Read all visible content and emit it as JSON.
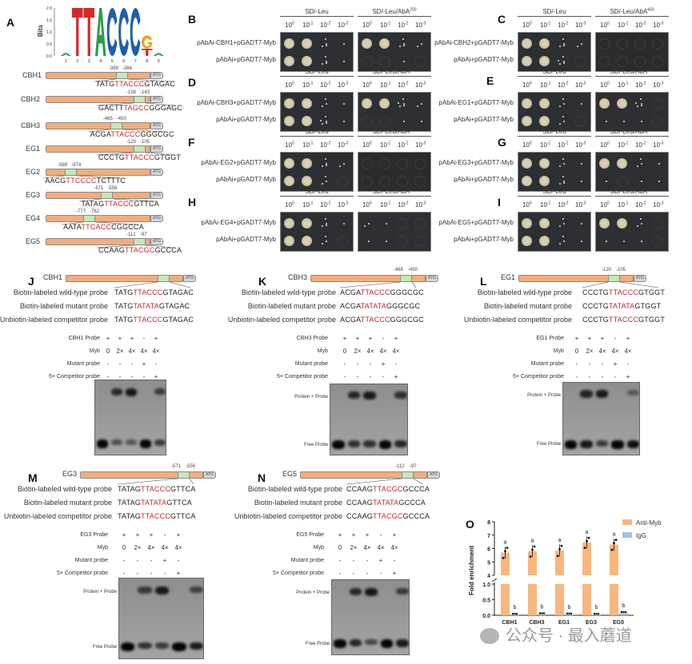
{
  "panel_labels": {
    "A": "A",
    "B": "B",
    "C": "C",
    "D": "D",
    "E": "E",
    "F": "F",
    "G": "G",
    "H": "H",
    "I": "I",
    "J": "J",
    "K": "K",
    "L": "L",
    "M": "M",
    "N": "N",
    "O": "O"
  },
  "logo": {
    "ylabel": "Bits",
    "yticks": [
      "0.0",
      "0.5",
      "1.0",
      "1.5",
      "2.0"
    ],
    "positions": [
      "1",
      "2",
      "3",
      "4",
      "5",
      "6",
      "7",
      "8",
      "9"
    ],
    "letters": [
      {
        "pos": 1,
        "letter": "A",
        "bits": 0.12,
        "color": "#2a9d4a"
      },
      {
        "pos": 2,
        "letter": "T",
        "bits": 2.0,
        "color": "#d62728"
      },
      {
        "pos": 3,
        "letter": "T",
        "bits": 2.0,
        "color": "#d62728"
      },
      {
        "pos": 4,
        "letter": "A",
        "bits": 2.0,
        "color": "#2a9d4a"
      },
      {
        "pos": 5,
        "letter": "C",
        "bits": 2.0,
        "color": "#1f5fa8"
      },
      {
        "pos": 6,
        "letter": "C",
        "bits": 2.0,
        "color": "#1f5fa8"
      },
      {
        "pos": 7,
        "letter": "C",
        "bits": 2.0,
        "color": "#1f5fa8"
      },
      {
        "pos": 8,
        "letter": "T",
        "bits": 0.3,
        "color": "#d62728"
      },
      {
        "pos": 8,
        "letter": "G",
        "bits": 0.55,
        "color": "#e8a317"
      },
      {
        "pos": 9,
        "letter": "A",
        "bits": 0.12,
        "color": "#2a9d4a"
      }
    ]
  },
  "promoters": [
    {
      "gene": "CBH1",
      "start": "-399",
      "end": "-384",
      "pre": "TATG",
      "core": "TTACCC",
      "post": "GTAGAC"
    },
    {
      "gene": "CBH2",
      "start": "-158",
      "end": "-143",
      "pre": "GACTT",
      "core": "TAGCC",
      "post": "GGGAGC"
    },
    {
      "gene": "CBH3",
      "start": "-465",
      "end": "-450",
      "pre": "ACGA",
      "core": "TTACCC",
      "post": "GGGCGC"
    },
    {
      "gene": "EG1",
      "start": "-120",
      "end": "-105",
      "pre": "CCCTG",
      "core": "TTACCC",
      "post": "GTGGT"
    },
    {
      "gene": "EG2",
      "start": "-989",
      "end": "-974",
      "pre": "AACG",
      "core": "TTCCCC",
      "post": "TCTTTC"
    },
    {
      "gene": "EG3",
      "start": "-571",
      "end": "-556",
      "pre": "TATAG",
      "core": "TTACCC",
      "post": "GTTCA"
    },
    {
      "gene": "EG4",
      "start": "-777",
      "end": "-762",
      "pre": "AATA",
      "core": "TTCACC",
      "post": "CGGCCA"
    },
    {
      "gene": "EG5",
      "start": "-112",
      "end": "-97",
      "pre": "CCAAG",
      "core": "TTACGC",
      "post": "GCCCA"
    }
  ],
  "atg": "ATG",
  "y1h": {
    "dilutions": [
      "10",
      "0",
      "10",
      "-1",
      "10",
      "-2",
      "10",
      "-3"
    ],
    "medium_control": "SD/-Leu",
    "medium_aba": "SD/-Leu/AbA",
    "control_row": "pAbAi+pGADT7-Myb",
    "panels": [
      {
        "id": "B",
        "bait": "pAbAi-CBH1+pGADT7-Myb",
        "aba": "250",
        "growth": [
          [
            1,
            1,
            0.4,
            0.1
          ],
          [
            1,
            1,
            0.4,
            0.1
          ],
          [
            1,
            1,
            0.4,
            0.2
          ],
          [
            0,
            0,
            0.05,
            0
          ]
        ]
      },
      {
        "id": "C",
        "bait": "pAbAi-CBH2+pGADT7-Myb",
        "aba": "450",
        "growth": [
          [
            1,
            1,
            0.4,
            0.2
          ],
          [
            1,
            1,
            0.5,
            0
          ],
          [
            0,
            0,
            0,
            0
          ],
          [
            0,
            0,
            0,
            0
          ]
        ]
      },
      {
        "id": "D",
        "bait": "pAbAi-CBH3+pGADT7-Myb",
        "aba": "350",
        "growth": [
          [
            1,
            1,
            0.3,
            0.05
          ],
          [
            1,
            1,
            0.5,
            0.1
          ],
          [
            1,
            1,
            0.5,
            0.2
          ],
          [
            0,
            0,
            0.1,
            0.05
          ]
        ]
      },
      {
        "id": "E",
        "bait": "pAbAi-EG1+pGADT7-Myb",
        "aba": "350",
        "growth": [
          [
            1,
            1,
            0.3,
            0.1
          ],
          [
            1,
            1,
            0.3,
            0
          ],
          [
            1,
            1,
            0.5,
            0
          ],
          [
            0.05,
            0.05,
            0.05,
            0
          ]
        ]
      },
      {
        "id": "F",
        "bait": "pAbAi-EG2+pGADT7-Myb",
        "aba": "300",
        "growth": [
          [
            1,
            1,
            0.4,
            0.15
          ],
          [
            1,
            1,
            0.3,
            0
          ],
          [
            0,
            0,
            0,
            0
          ],
          [
            0,
            0,
            0,
            0
          ]
        ]
      },
      {
        "id": "G",
        "bait": "pAbAi-EG3+pGADT7-Myb",
        "aba": "350",
        "growth": [
          [
            1,
            1,
            0.3,
            0.1
          ],
          [
            1,
            1,
            0.4,
            0.1
          ],
          [
            1,
            1,
            0.3,
            0.05
          ],
          [
            0.05,
            0,
            0.05,
            0.05
          ]
        ]
      },
      {
        "id": "H",
        "bait": "pAbAi-EG4+pGADT7-Myb",
        "aba": "400",
        "growth": [
          [
            1,
            1,
            0.4,
            0.05
          ],
          [
            1,
            1,
            0.3,
            0
          ],
          [
            0.15,
            0.1,
            0,
            0
          ],
          [
            0.1,
            0.1,
            0,
            0
          ]
        ]
      },
      {
        "id": "I",
        "bait": "pAbAi-EG5+pGADT7-Myb",
        "aba": "250",
        "growth": [
          [
            1,
            1,
            0.3,
            0.05
          ],
          [
            1,
            1,
            0.3,
            0.05
          ],
          [
            1,
            1,
            0.3,
            0
          ],
          [
            0.05,
            0.05,
            0.05,
            0
          ]
        ]
      }
    ]
  },
  "emsa": {
    "probe_labels": [
      "Biotin-labeled wild-type probe",
      "Biotin-labeled mutant probe",
      "Unbiotin-labeled competitor probe"
    ],
    "cond_labels": [
      "Probe",
      "Myb",
      "Mutant probe",
      "5× Competitor probe"
    ],
    "cond_values": [
      [
        "+",
        "+",
        "+",
        "-",
        "+"
      ],
      [
        "0",
        "2×",
        "4×",
        "4×",
        "4×"
      ],
      [
        "-",
        "-",
        "-",
        "+",
        "-"
      ],
      [
        "-",
        "-",
        "-",
        "-",
        "+"
      ]
    ],
    "band_labels": [
      "Protein + Probe",
      "Free Probe"
    ],
    "panels": [
      {
        "id": "J",
        "gene": "CBH1",
        "start": "",
        "end": "",
        "wt": [
          "TATG",
          "TTACCC",
          "GTAGAC"
        ],
        "mut": [
          "TATG",
          "TATATA",
          "GTAGAC"
        ],
        "comp": [
          "TATG",
          "TTACCC",
          "GTAGAC"
        ],
        "shift": [
          0,
          0.8,
          1,
          0,
          0.6
        ],
        "free": [
          1,
          0.35,
          0.25,
          1,
          0.5
        ]
      },
      {
        "id": "K",
        "gene": "CBH3",
        "start": "-465",
        "end": "-450",
        "wt": [
          "ACGA",
          "TTACCC",
          "GGGCGC"
        ],
        "mut": [
          "ACGA",
          "TATATA",
          "GGGCGC"
        ],
        "comp": [
          "ACGA",
          "TTACCC",
          "GGGCGC"
        ],
        "shift": [
          0,
          0.85,
          1,
          0,
          0.7
        ],
        "free": [
          1,
          0.6,
          0.6,
          1,
          0.7
        ]
      },
      {
        "id": "L",
        "gene": "EG1",
        "start": "-120",
        "end": "-105",
        "wt": [
          "CCCTG",
          "TTACCC",
          "GTGGT"
        ],
        "mut": [
          "CCCTG",
          "TATATA",
          "GTGGT"
        ],
        "comp": [
          "CCCTG",
          "TTACCC",
          "GTGGT"
        ],
        "shift": [
          0,
          0.85,
          1,
          0,
          0.2
        ],
        "free": [
          1,
          0.8,
          0.5,
          1,
          0.9
        ]
      },
      {
        "id": "M",
        "gene": "EG3",
        "start": "-571",
        "end": "-556",
        "wt": [
          "TATAG",
          "TTACCC",
          "GTTCA"
        ],
        "mut": [
          "TATAG",
          "TATATA",
          "GTTCA"
        ],
        "comp": [
          "TATAG",
          "TTACCC",
          "GTTCA"
        ],
        "shift": [
          0,
          0.6,
          1,
          0,
          0.5
        ],
        "free": [
          1,
          0.6,
          0.5,
          1,
          0.8
        ]
      },
      {
        "id": "N",
        "gene": "EG5",
        "start": "-112",
        "end": "-97",
        "wt": [
          "CCAAG",
          "TTACGC",
          "GCCCA"
        ],
        "mut": [
          "CCAAG",
          "TATATA",
          "GCCCA"
        ],
        "comp": [
          "CCAAG",
          "TTACGC",
          "GCCCA"
        ],
        "shift": [
          0,
          0.8,
          1,
          0,
          0.6
        ],
        "free": [
          1,
          0.7,
          0.4,
          1,
          0.8
        ]
      }
    ]
  },
  "chart_data": {
    "type": "bar",
    "ylabel": "Fold enrichment",
    "categories": [
      "CBH1",
      "CBH3",
      "EG1",
      "EG3",
      "EG5"
    ],
    "series": [
      {
        "name": "Anti-Myb",
        "color": "#f7b77e",
        "values": [
          5.7,
          5.8,
          5.85,
          6.45,
          6.3
        ],
        "sig": [
          "a",
          "a",
          "a",
          "a",
          "a"
        ]
      },
      {
        "name": "IgG",
        "color": "#9cc3ec",
        "values": [
          0.02,
          0.04,
          0.03,
          0.02,
          0.08
        ],
        "sig": [
          "b",
          "b",
          "b",
          "b",
          "b"
        ]
      }
    ],
    "y_break": [
      1.0,
      4
    ],
    "ylim_lower": [
      0,
      1.0
    ],
    "ylim_upper": [
      4,
      8
    ],
    "yticks_lower": [
      "0.0",
      "0.5",
      "1.0"
    ],
    "yticks_upper": [
      "4",
      "5",
      "6",
      "7",
      "8"
    ],
    "legend": "top-right"
  },
  "watermark": "公众号 · 最入蘑道"
}
